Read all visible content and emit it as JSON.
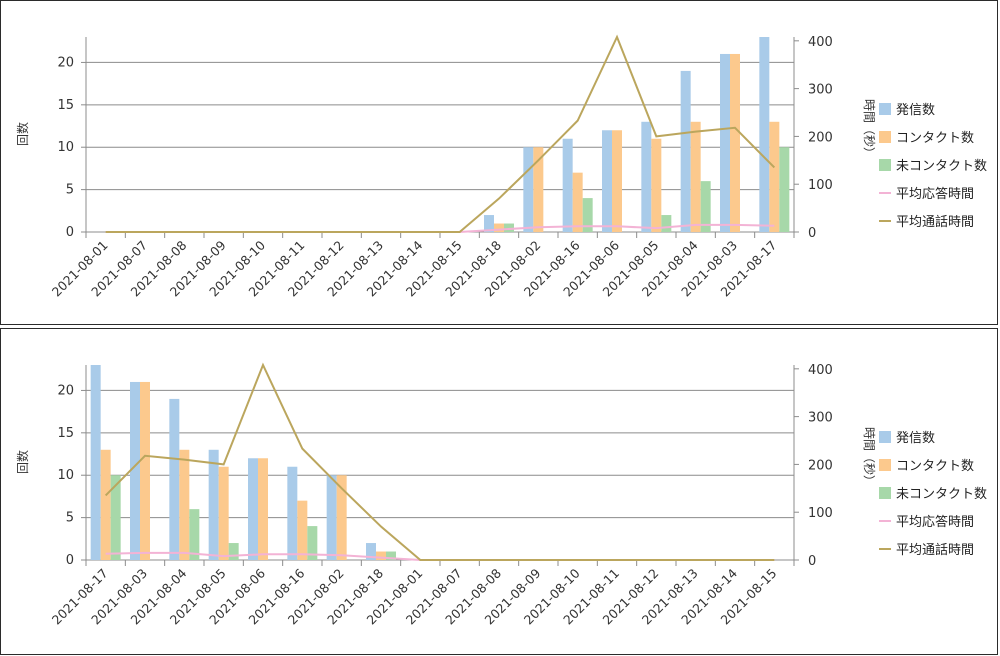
{
  "chart_data": [
    {
      "type": "bar",
      "categories": [
        "2021-08-01",
        "2021-08-07",
        "2021-08-08",
        "2021-08-09",
        "2021-08-10",
        "2021-08-11",
        "2021-08-12",
        "2021-08-13",
        "2021-08-14",
        "2021-08-15",
        "2021-08-18",
        "2021-08-02",
        "2021-08-16",
        "2021-08-06",
        "2021-08-05",
        "2021-08-04",
        "2021-08-03",
        "2021-08-17"
      ],
      "series": [
        {
          "name": "発信数",
          "type": "bar",
          "axis": "left",
          "color": "#a9cbe9",
          "values": [
            0,
            0,
            0,
            0,
            0,
            0,
            0,
            0,
            0,
            0,
            2,
            10,
            11,
            12,
            13,
            19,
            21,
            23
          ]
        },
        {
          "name": "コンタクト数",
          "type": "bar",
          "axis": "left",
          "color": "#fcc98d",
          "values": [
            0,
            0,
            0,
            0,
            0,
            0,
            0,
            0,
            0,
            0,
            1,
            10,
            7,
            12,
            11,
            13,
            21,
            13
          ]
        },
        {
          "name": "未コンタクト数",
          "type": "bar",
          "axis": "left",
          "color": "#a7d8a9",
          "values": [
            0,
            0,
            0,
            0,
            0,
            0,
            0,
            0,
            0,
            0,
            1,
            0,
            4,
            0,
            2,
            6,
            0,
            10
          ]
        },
        {
          "name": "平均応答時間",
          "type": "line",
          "axis": "right",
          "color": "#f3b3d5",
          "values": [
            0,
            0,
            0,
            0,
            0,
            0,
            0,
            0,
            0,
            0,
            5,
            10,
            12,
            12,
            8,
            15,
            15,
            13
          ]
        },
        {
          "name": "平均通話時間",
          "type": "line",
          "axis": "right",
          "color": "#bba65d",
          "values": [
            0,
            0,
            0,
            0,
            0,
            0,
            0,
            0,
            0,
            0,
            70,
            150,
            233,
            408,
            200,
            210,
            218,
            135
          ]
        }
      ],
      "ylabel": "回数",
      "y2label": "時間（秒）",
      "ylim": [
        0,
        23
      ],
      "yticks": [
        0,
        5,
        10,
        15,
        20
      ],
      "y2lim": [
        0,
        408
      ],
      "y2ticks": [
        0,
        100,
        200,
        300,
        400
      ],
      "grid": true,
      "legend": "right"
    },
    {
      "type": "bar",
      "categories": [
        "2021-08-17",
        "2021-08-03",
        "2021-08-04",
        "2021-08-05",
        "2021-08-06",
        "2021-08-16",
        "2021-08-02",
        "2021-08-18",
        "2021-08-01",
        "2021-08-07",
        "2021-08-08",
        "2021-08-09",
        "2021-08-10",
        "2021-08-11",
        "2021-08-12",
        "2021-08-13",
        "2021-08-14",
        "2021-08-15"
      ],
      "series": [
        {
          "name": "発信数",
          "type": "bar",
          "axis": "left",
          "color": "#a9cbe9",
          "values": [
            23,
            21,
            19,
            13,
            12,
            11,
            10,
            2,
            0,
            0,
            0,
            0,
            0,
            0,
            0,
            0,
            0,
            0
          ]
        },
        {
          "name": "コンタクト数",
          "type": "bar",
          "axis": "left",
          "color": "#fcc98d",
          "values": [
            13,
            21,
            13,
            11,
            12,
            7,
            10,
            1,
            0,
            0,
            0,
            0,
            0,
            0,
            0,
            0,
            0,
            0
          ]
        },
        {
          "name": "未コンタクト数",
          "type": "bar",
          "axis": "left",
          "color": "#a7d8a9",
          "values": [
            10,
            0,
            6,
            2,
            0,
            4,
            0,
            1,
            0,
            0,
            0,
            0,
            0,
            0,
            0,
            0,
            0,
            0
          ]
        },
        {
          "name": "平均応答時間",
          "type": "line",
          "axis": "right",
          "color": "#f3b3d5",
          "values": [
            13,
            15,
            15,
            8,
            12,
            12,
            10,
            5,
            0,
            0,
            0,
            0,
            0,
            0,
            0,
            0,
            0,
            0
          ]
        },
        {
          "name": "平均通話時間",
          "type": "line",
          "axis": "right",
          "color": "#bba65d",
          "values": [
            135,
            218,
            210,
            200,
            408,
            233,
            150,
            70,
            0,
            0,
            0,
            0,
            0,
            0,
            0,
            0,
            0,
            0
          ]
        }
      ],
      "ylabel": "回数",
      "y2label": "時間（秒）",
      "ylim": [
        0,
        23
      ],
      "yticks": [
        0,
        5,
        10,
        15,
        20
      ],
      "y2lim": [
        0,
        408
      ],
      "y2ticks": [
        0,
        100,
        200,
        300,
        400
      ],
      "grid": true,
      "legend": "right"
    }
  ]
}
